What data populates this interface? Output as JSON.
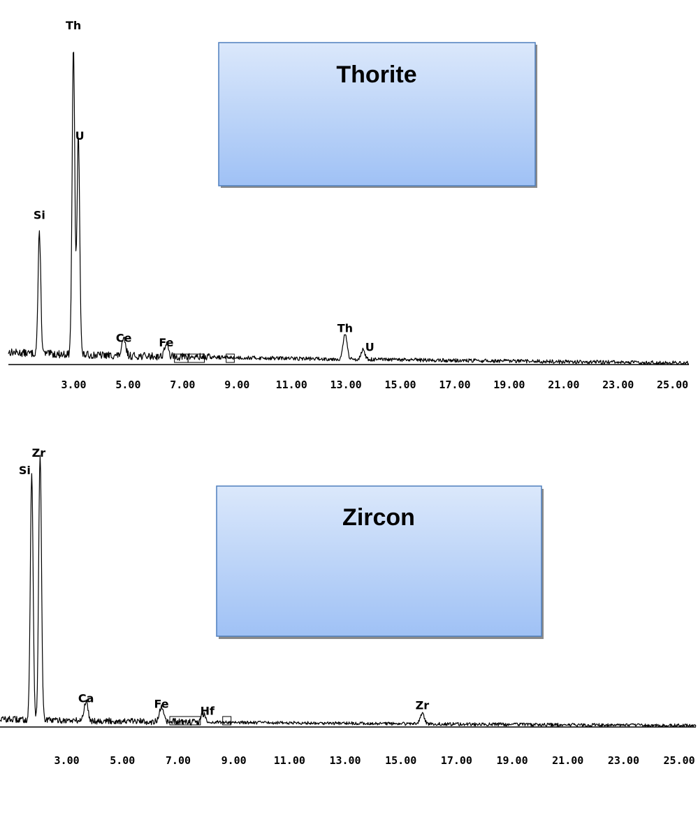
{
  "colors": {
    "box_top": "#dbe8fb",
    "box_bottom": "#9fc1f5",
    "box_border": "#4f7fbd",
    "box_shadow": "#8a8a8a"
  },
  "chart_data": [
    {
      "type": "line",
      "title": "Thorite",
      "xlim": [
        0.6,
        25.6
      ],
      "ylim": [
        0,
        100
      ],
      "x_ticks": [
        "3.00",
        "5.00",
        "7.00",
        "9.00",
        "11.00",
        "13.00",
        "15.00",
        "17.00",
        "19.00",
        "21.00",
        "23.00",
        "25.00"
      ],
      "x_tick_values": [
        3,
        5,
        7,
        9,
        11,
        13,
        15,
        17,
        19,
        21,
        23,
        25
      ],
      "peaks": [
        {
          "label": "Si",
          "x": 1.74,
          "y": 38
        },
        {
          "label": "Th",
          "x": 2.99,
          "y": 96
        },
        {
          "label": "U",
          "x": 3.17,
          "y": 70
        },
        {
          "label": "Ce",
          "x": 4.84,
          "y": 5
        },
        {
          "label": "Fe",
          "x": 6.4,
          "y": 4
        },
        {
          "label": "Th",
          "x": 12.97,
          "y": 8
        },
        {
          "label": "U",
          "x": 13.62,
          "y": 3
        }
      ],
      "baseline": {
        "start": 4,
        "end": 0.5
      },
      "markers": [
        [
          6.7,
          7.2
        ],
        [
          7.2,
          7.8
        ],
        [
          8.6,
          8.9
        ]
      ]
    },
    {
      "type": "line",
      "title": "Zircon",
      "xlim": [
        0.6,
        25.6
      ],
      "ylim": [
        0,
        100
      ],
      "x_ticks": [
        "3.00",
        "5.00",
        "7.00",
        "9.00",
        "11.00",
        "13.00",
        "15.00",
        "17.00",
        "19.00",
        "21.00",
        "23.00",
        "25.00"
      ],
      "x_tick_values": [
        3,
        5,
        7,
        9,
        11,
        13,
        15,
        17,
        19,
        21,
        23,
        25
      ],
      "peaks": [
        {
          "label": "Si",
          "x": 1.74,
          "y": 90
        },
        {
          "label": "Zr",
          "x": 2.04,
          "y": 98
        },
        {
          "label": "Ca",
          "x": 3.69,
          "y": 7
        },
        {
          "label": "Fe",
          "x": 6.4,
          "y": 5
        },
        {
          "label": "Hf",
          "x": 7.9,
          "y": 3
        },
        {
          "label": "Zr",
          "x": 15.77,
          "y": 4
        }
      ],
      "baseline": {
        "start": 3,
        "end": 0.5
      },
      "markers": [
        [
          6.7,
          7.8
        ],
        [
          8.6,
          8.9
        ]
      ]
    }
  ]
}
